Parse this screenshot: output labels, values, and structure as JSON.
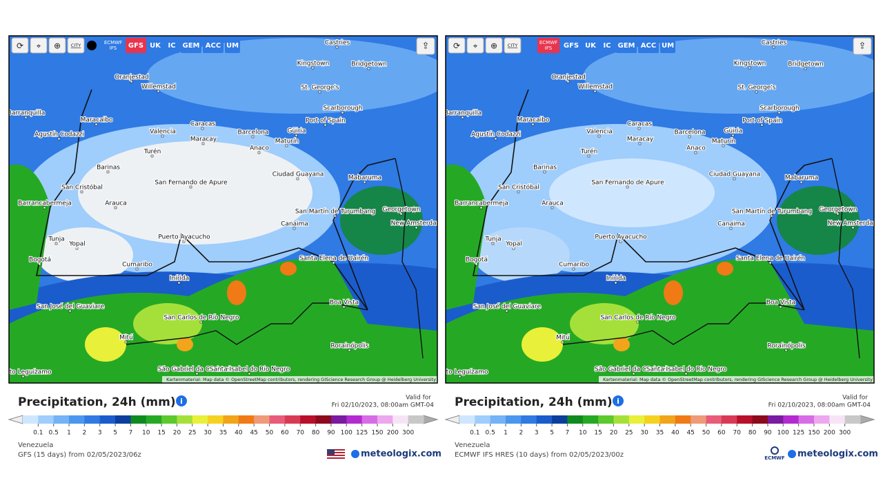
{
  "map_labels": [
    "Castries",
    "Kingstown",
    "Bridgetown",
    "Oranjestad",
    "Willemstad",
    "St. George's",
    "Scarborough",
    "Barranquilla",
    "Port of Spain",
    "Maracaibo",
    "Caracas",
    "Agustín Codazzi",
    "Valencia",
    "Barcelona",
    "Güiria",
    "Maracay",
    "Anaco",
    "Maturín",
    "Turén",
    "Barinas",
    "Ciudad Guayana",
    "Mabaruma",
    "San Fernando de Apure",
    "San Cristóbal",
    "Arauca",
    "Barrancabermeja",
    "San Martín de Turumbang",
    "Georgetown",
    "Canaima",
    "New Amsterdam",
    "Puerto Ayacucho",
    "Tunja",
    "Yopal",
    "Bogotá",
    "Santa Elena de Uairén",
    "Cumaribo",
    "Inírida",
    "San José del Guaviare",
    "Boa Vista",
    "San Carlos de Río Negro",
    "Mitú",
    "Rorainópolis",
    "Puerto Leguízamo",
    "São Gabriel da Cachoeira",
    "Santa Isabel do Rio Negro"
  ],
  "attribution": "Kartenmaterial: Map data © OpenStreetMap contributors, rendering GIScience Research Group @ Heidelberg University",
  "toolbar": {
    "city": "CITY",
    "models": [
      "ECMWF IFS",
      "GFS",
      "UK",
      "IC",
      "GEM",
      "ACC",
      "UM"
    ]
  },
  "legend_labels": [
    "0.1",
    "0.5",
    "1",
    "2",
    "3",
    "5",
    "7",
    "10",
    "15",
    "20",
    "25",
    "30",
    "35",
    "40",
    "45",
    "50",
    "60",
    "70",
    "80",
    "90",
    "100",
    "125",
    "150",
    "200",
    "300"
  ],
  "panels": [
    {
      "active_model": 1,
      "title": "Precipitation, 24h (mm)",
      "valid_label": "Valid for",
      "valid_time": "Fri 02/10/2023, 08:00am GMT-04",
      "region": "Venezuela",
      "run": "GFS (15 days) from 02/05/2023/06z",
      "brand": "meteologix.com"
    },
    {
      "active_model": 0,
      "title": "Precipitation, 24h (mm)",
      "valid_label": "Valid for",
      "valid_time": "Fri 02/10/2023, 08:00am GMT-04",
      "region": "Venezuela",
      "run": "ECMWF IFS HRES (10 days) from 02/05/2023/00z",
      "brand": "meteologix.com",
      "logo": "ECMWF"
    }
  ]
}
